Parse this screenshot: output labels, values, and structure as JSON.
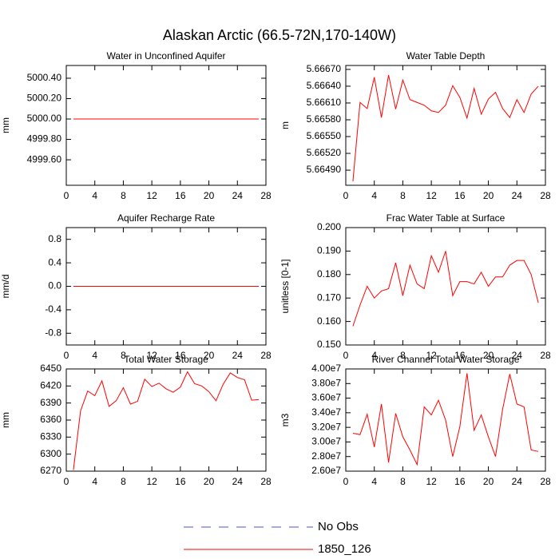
{
  "title": "Alaskan Arctic (66.5-72N,170-140W)",
  "legend": [
    {
      "name": "No Obs",
      "color": "#5050d0",
      "style": "dashed"
    },
    {
      "name": "1850_126",
      "color": "#ff0000",
      "style": "solid"
    }
  ],
  "chart_data": [
    {
      "type": "line",
      "title": "Water in Unconfined Aquifer",
      "ylabel": "mm",
      "x": [
        1,
        2,
        3,
        4,
        5,
        6,
        7,
        8,
        9,
        10,
        11,
        12,
        13,
        14,
        15,
        16,
        17,
        18,
        19,
        20,
        21,
        22,
        23,
        24,
        25,
        26,
        27
      ],
      "values": [
        5000,
        5000,
        5000,
        5000,
        5000,
        5000,
        5000,
        5000,
        5000,
        5000,
        5000,
        5000,
        5000,
        5000,
        5000,
        5000,
        5000,
        5000,
        5000,
        5000,
        5000,
        5000,
        5000,
        5000,
        5000,
        5000,
        5000
      ],
      "color": "#ff0000",
      "xlim": [
        0,
        28
      ],
      "xticks": [
        0,
        4,
        8,
        12,
        16,
        20,
        24,
        28
      ],
      "ylim": [
        4999.35,
        5000.525
      ],
      "yticks": [
        {
          "value": 4999.6,
          "label": "4999.60"
        },
        {
          "value": 4999.8,
          "label": "4999.80"
        },
        {
          "value": 5000,
          "label": "5000.00"
        },
        {
          "value": 5000.2,
          "label": "5000.20"
        },
        {
          "value": 5000.4,
          "label": "5000.40"
        }
      ]
    },
    {
      "type": "line",
      "title": "Water Table Depth",
      "ylabel": "m",
      "x": [
        1,
        2,
        3,
        4,
        5,
        6,
        7,
        8,
        9,
        10,
        11,
        12,
        13,
        14,
        15,
        16,
        17,
        18,
        19,
        20,
        21,
        22,
        23,
        24,
        25,
        26,
        27
      ],
      "values": [
        5.6647,
        5.66611,
        5.666,
        5.66656,
        5.66584,
        5.6666,
        5.66599,
        5.66651,
        5.66616,
        5.66611,
        5.66606,
        5.66596,
        5.66593,
        5.66606,
        5.66641,
        5.6662,
        5.66583,
        5.66636,
        5.6659,
        5.66617,
        5.66629,
        5.666,
        5.66584,
        5.66616,
        5.66593,
        5.66626,
        5.6664
      ],
      "color": "#ff0000",
      "xlim": [
        0,
        28
      ],
      "xticks": [
        0,
        4,
        8,
        12,
        16,
        20,
        24,
        28
      ],
      "ylim": [
        5.66463,
        5.66677
      ],
      "yticks": [
        {
          "value": 5.6649,
          "label": "5.66490"
        },
        {
          "value": 5.6652,
          "label": "5.66520"
        },
        {
          "value": 5.6655,
          "label": "5.66550"
        },
        {
          "value": 5.6658,
          "label": "5.66580"
        },
        {
          "value": 5.6661,
          "label": "5.66610"
        },
        {
          "value": 5.6664,
          "label": "5.66640"
        },
        {
          "value": 5.6667,
          "label": "5.66670"
        }
      ]
    },
    {
      "type": "line",
      "title": "Aquifer Recharge Rate",
      "ylabel": "mm/d",
      "x": [
        1,
        2,
        3,
        4,
        5,
        6,
        7,
        8,
        9,
        10,
        11,
        12,
        13,
        14,
        15,
        16,
        17,
        18,
        19,
        20,
        21,
        22,
        23,
        24,
        25,
        26,
        27
      ],
      "values": [
        0,
        0,
        0,
        0,
        0,
        0,
        0,
        0,
        0,
        0,
        0,
        0,
        0,
        0,
        0,
        0,
        0,
        0,
        0,
        0,
        0,
        0,
        0,
        0,
        0,
        0,
        0
      ],
      "color": "#ff0000",
      "xlim": [
        0,
        28
      ],
      "xticks": [
        0,
        4,
        8,
        12,
        16,
        20,
        24,
        28
      ],
      "ylim": [
        -1,
        1
      ],
      "yticks": [
        -0.8,
        -0.4,
        {
          "value": 0,
          "label": "0.0"
        },
        0.4,
        0.8
      ]
    },
    {
      "type": "line",
      "title": "Frac Water Table at Surface",
      "ylabel": "unitless [0-1]",
      "x": [
        1,
        2,
        3,
        4,
        5,
        6,
        7,
        8,
        9,
        10,
        11,
        12,
        13,
        14,
        15,
        16,
        17,
        18,
        19,
        20,
        21,
        22,
        23,
        24,
        25,
        26,
        27
      ],
      "values": [
        0.158,
        0.167,
        0.175,
        0.17,
        0.173,
        0.174,
        0.185,
        0.171,
        0.184,
        0.176,
        0.174,
        0.188,
        0.181,
        0.19,
        0.171,
        0.177,
        0.177,
        0.176,
        0.181,
        0.175,
        0.179,
        0.179,
        0.184,
        0.186,
        0.186,
        0.18,
        0.168
      ],
      "color": "#ff0000",
      "xlim": [
        0,
        28
      ],
      "xticks": [
        0,
        4,
        8,
        12,
        16,
        20,
        24,
        28
      ],
      "ylim": [
        0.15,
        0.2
      ],
      "yticks": [
        {
          "value": 0.15,
          "label": "0.150"
        },
        {
          "value": 0.16,
          "label": "0.160"
        },
        {
          "value": 0.17,
          "label": "0.170"
        },
        {
          "value": 0.18,
          "label": "0.180"
        },
        {
          "value": 0.19,
          "label": "0.190"
        },
        {
          "value": 0.2,
          "label": "0.200"
        }
      ]
    },
    {
      "type": "line",
      "title": "Total Water Storage",
      "ylabel": "mm",
      "x": [
        1,
        2,
        3,
        4,
        5,
        6,
        7,
        8,
        9,
        10,
        11,
        12,
        13,
        14,
        15,
        16,
        17,
        18,
        19,
        20,
        21,
        22,
        23,
        24,
        25,
        26,
        27
      ],
      "values": [
        6272,
        6376,
        6411,
        6403,
        6429,
        6384,
        6394,
        6417,
        6388,
        6393,
        6432,
        6419,
        6425,
        6415,
        6409,
        6418,
        6445,
        6424,
        6420,
        6410,
        6394,
        6423,
        6443,
        6435,
        6431,
        6395,
        6396
      ],
      "color": "#ff0000",
      "xlim": [
        0,
        28
      ],
      "xticks": [
        0,
        4,
        8,
        12,
        16,
        20,
        24,
        28
      ],
      "ylim": [
        6270,
        6450
      ],
      "yticks": [
        6270,
        6300,
        6330,
        6360,
        6390,
        6420,
        6450
      ]
    },
    {
      "type": "line",
      "title": "River Channel Total Water Storage",
      "ylabel": "m3",
      "x": [
        1,
        2,
        3,
        4,
        5,
        6,
        7,
        8,
        9,
        10,
        11,
        12,
        13,
        14,
        15,
        16,
        17,
        18,
        19,
        20,
        21,
        22,
        23,
        24,
        25,
        26,
        27
      ],
      "values": [
        31200000,
        31000000,
        33800000,
        29300000,
        35200000,
        27200000,
        33900000,
        30700000,
        28900000,
        26900000,
        34800000,
        33700000,
        35700000,
        33000000,
        28000000,
        32100000,
        39400000,
        31600000,
        33700000,
        30700000,
        28000000,
        34500000,
        39300000,
        35200000,
        34800000,
        28900000,
        28700000
      ],
      "color": "#ff0000",
      "xlim": [
        0,
        28
      ],
      "xticks": [
        0,
        4,
        8,
        12,
        16,
        20,
        24,
        28
      ],
      "ylim": [
        26000000,
        40000000
      ],
      "yticks": [
        {
          "value": 26000000,
          "label": "2.60e7"
        },
        {
          "value": 28000000,
          "label": "2.80e7"
        },
        {
          "value": 30000000,
          "label": "3.00e7"
        },
        {
          "value": 32000000,
          "label": "3.20e7"
        },
        {
          "value": 34000000,
          "label": "3.40e7"
        },
        {
          "value": 36000000,
          "label": "3.60e7"
        },
        {
          "value": 38000000,
          "label": "3.80e7"
        },
        {
          "value": 40000000,
          "label": "4.00e7"
        }
      ]
    }
  ]
}
